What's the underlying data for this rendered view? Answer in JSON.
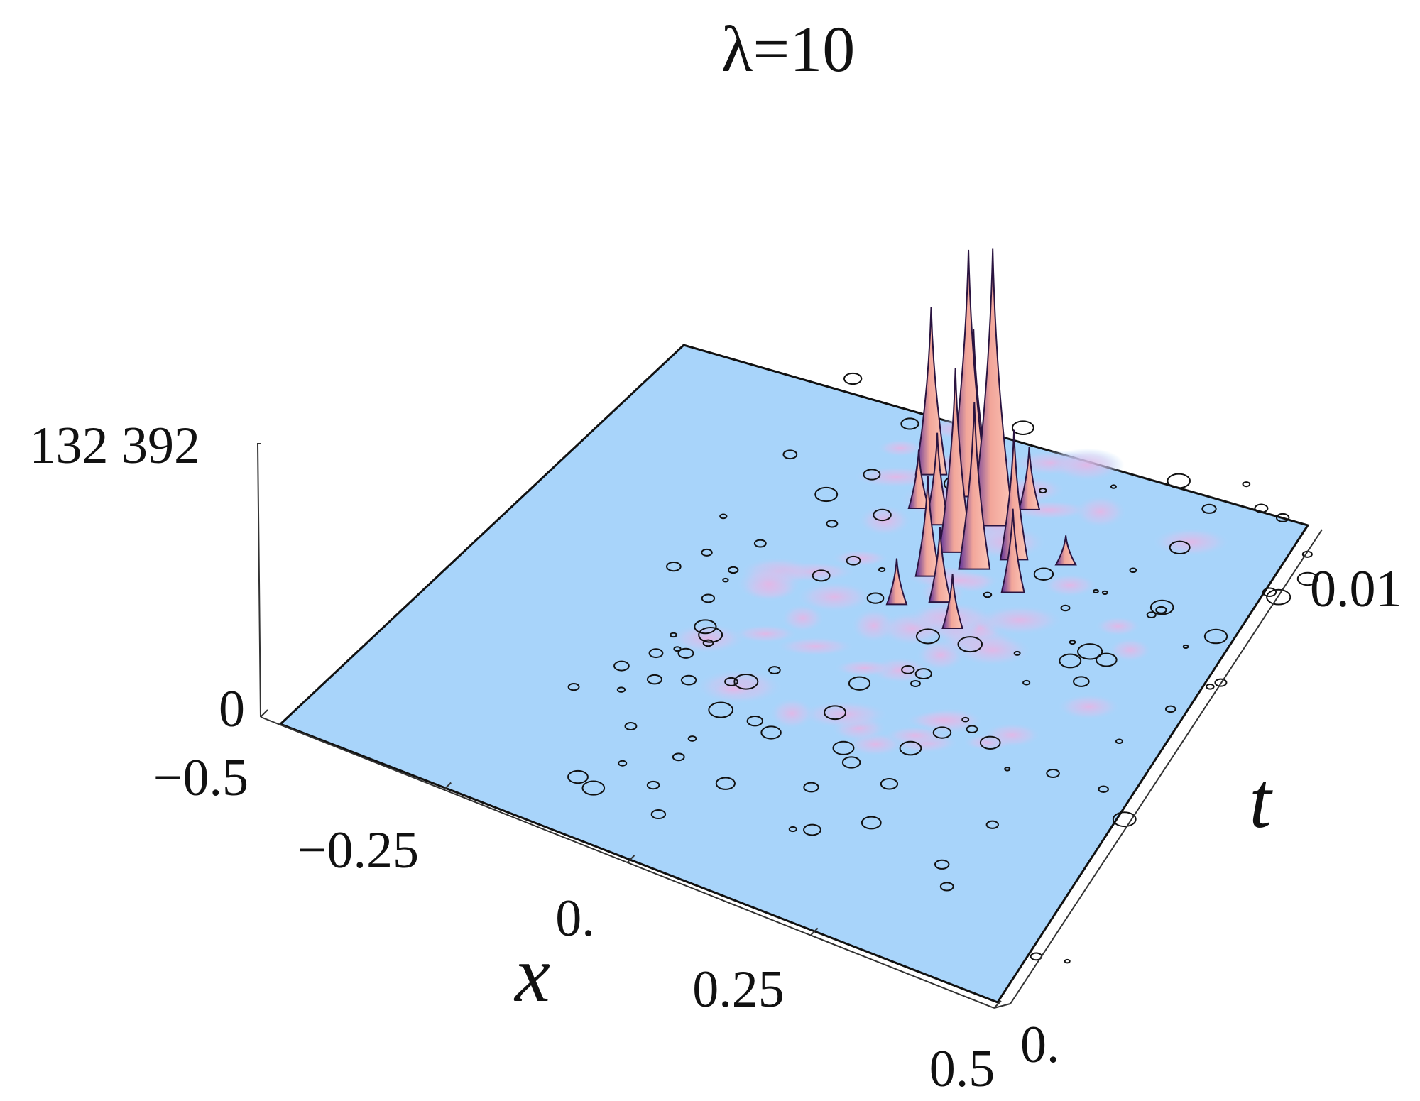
{
  "chart_data": {
    "type": "surface3d",
    "title": "λ=10",
    "xlabel": "x",
    "ylabel": "t",
    "zlabel": "",
    "x_ticks": [
      "−0.5",
      "−0.25",
      "0.",
      "0.25",
      "0.5"
    ],
    "t_ticks": [
      "0.",
      "0.01"
    ],
    "z_ticks": [
      "0",
      "132 392"
    ],
    "xlim": [
      -0.5,
      0.5
    ],
    "tlim": [
      0,
      0.01
    ],
    "zlim": [
      0,
      132392
    ],
    "peaks": [
      {
        "x": 0.09,
        "t": 0.0083,
        "z": 132392
      },
      {
        "x": 0.03,
        "t": 0.0087,
        "z": 118000
      },
      {
        "x": -0.04,
        "t": 0.0089,
        "z": 80000
      },
      {
        "x": 0.01,
        "t": 0.0092,
        "z": 68000
      },
      {
        "x": 0.15,
        "t": 0.0078,
        "z": 62000
      },
      {
        "x": 0.07,
        "t": 0.0076,
        "z": 88000
      },
      {
        "x": 0.11,
        "t": 0.0074,
        "z": 80000
      },
      {
        "x": 0.06,
        "t": 0.007,
        "z": 48000
      },
      {
        "x": 0.18,
        "t": 0.0072,
        "z": 40000
      },
      {
        "x": 0.02,
        "t": 0.008,
        "z": 44000
      },
      {
        "x": 0.1,
        "t": 0.0066,
        "z": 36000
      },
      {
        "x": 0.14,
        "t": 0.0062,
        "z": 26000
      },
      {
        "x": 0.05,
        "t": 0.0063,
        "z": 22000
      },
      {
        "x": -0.02,
        "t": 0.0082,
        "z": 28000
      },
      {
        "x": 0.22,
        "t": 0.008,
        "z": 14000
      },
      {
        "x": 0.12,
        "t": 0.0088,
        "z": 30000
      }
    ],
    "colors": {
      "surface": "#a8d4fa",
      "peak_light": "#f7b0a3",
      "peak_dark": "#6a3bb3",
      "contour": "#111111"
    }
  }
}
